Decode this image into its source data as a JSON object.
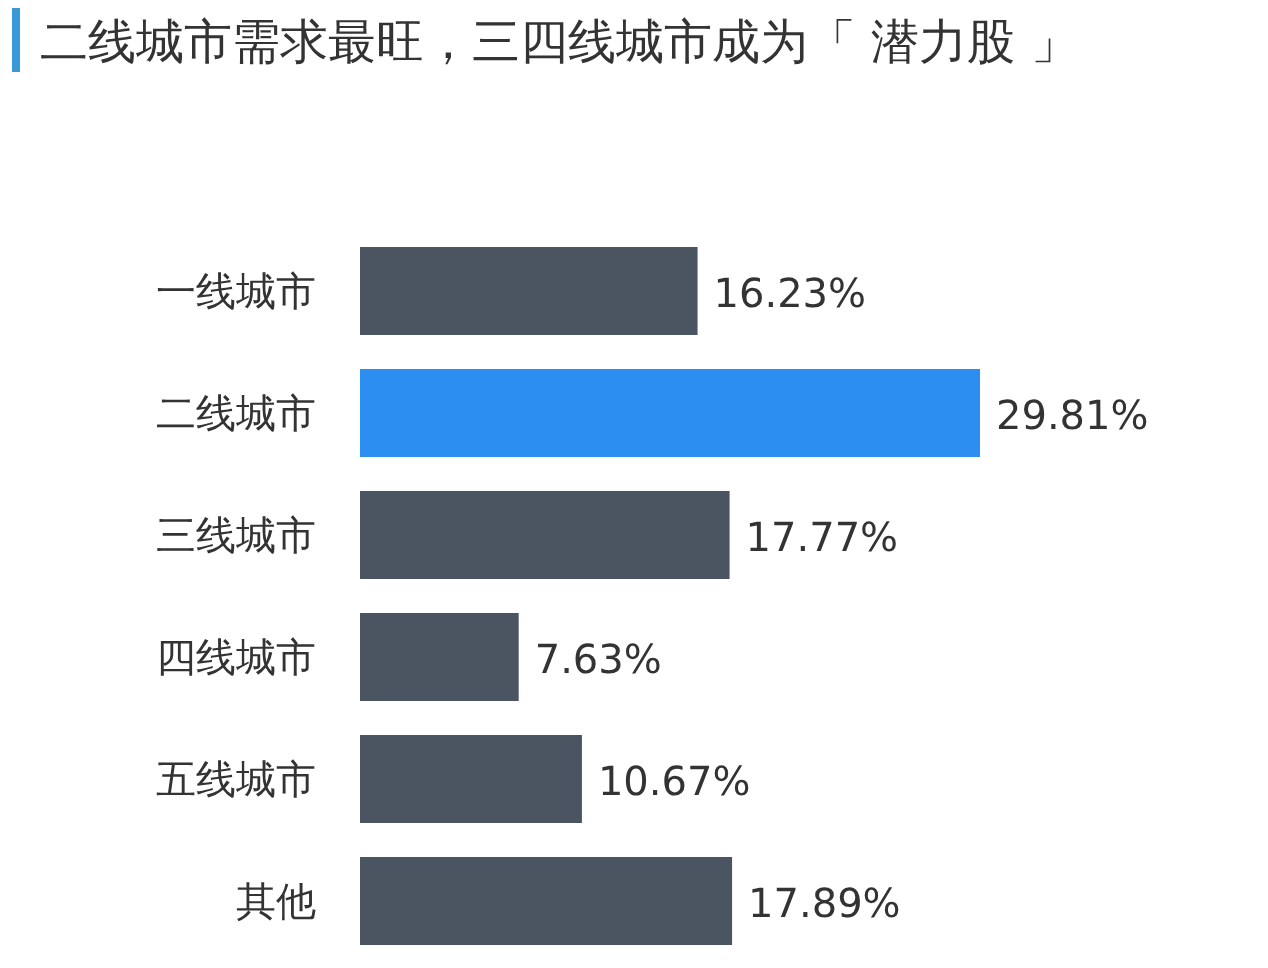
{
  "chart_data": {
    "type": "bar",
    "orientation": "horizontal",
    "title": "二线城市需求最旺，三四线城市成为「 潜力股 」",
    "categories": [
      "一线城市",
      "二线城市",
      "三线城市",
      "四线城市",
      "五线城市",
      "其他"
    ],
    "values": [
      16.23,
      29.81,
      17.77,
      7.63,
      10.67,
      17.89
    ],
    "colors": [
      "#4b5461",
      "#2b8ef0",
      "#4b5461",
      "#4b5461",
      "#4b5461",
      "#4b5461"
    ],
    "value_labels": [
      "16.23%",
      "29.81%",
      "17.77%",
      "7.63%",
      "10.67%",
      "17.89%"
    ]
  }
}
